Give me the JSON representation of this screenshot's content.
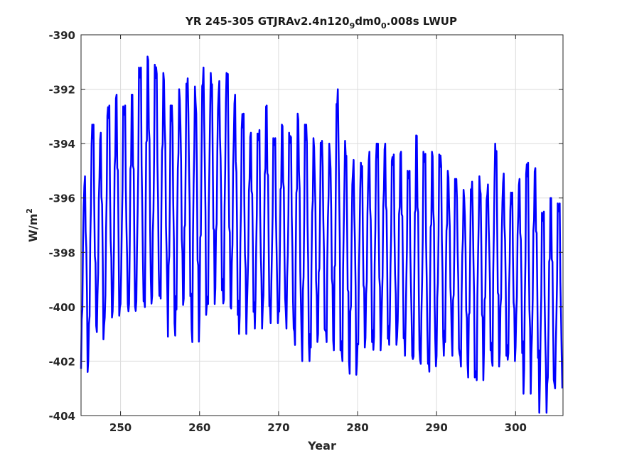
{
  "chart_data": {
    "type": "line",
    "title": "YR 245-305 GTJRAv2.4n120",
    "title_parts": {
      "a": "YR 245-305 GTJRAv2.4n120",
      "sub1": "9",
      "b": "dm0",
      "sub2": "0",
      "c": ".008s LWUP"
    },
    "xlabel": "Year",
    "ylabel": "W/m",
    "ylabel_sup": "2",
    "xlim": [
      245,
      306
    ],
    "ylim": [
      -404,
      -390
    ],
    "xticks": [
      250,
      260,
      270,
      280,
      290,
      300
    ],
    "yticks": [
      -390,
      -392,
      -394,
      -396,
      -398,
      -400,
      -402,
      -404
    ],
    "grid": true,
    "line_color": "#0000ff",
    "series": [
      {
        "description_cycle": "monthly values, seasonal cycle per year (peak approx mid-year, trough approx early year)",
        "yearly_max": [
          -395.2,
          -393.3,
          -393.6,
          -392.6,
          -392.2,
          -392.6,
          -392.2,
          -391.2,
          -390.8,
          -391.1,
          -391.4,
          -392.6,
          -392.0,
          -391.6,
          -391.9,
          -391.2,
          -391.4,
          -391.7,
          -391.4,
          -392.2,
          -392.9,
          -393.6,
          -393.5,
          -392.6,
          -393.8,
          -393.3,
          -393.6,
          -392.9,
          -393.3,
          -393.8,
          -393.9,
          -394.0,
          -392.0,
          -393.9,
          -394.6,
          -394.7,
          -394.3,
          -394.0,
          -394.0,
          -394.4,
          -394.3,
          -395.0,
          -393.7,
          -394.3,
          -394.3,
          -394.4,
          -395.0,
          -395.3,
          -395.7,
          -395.4,
          -395.2,
          -395.5,
          -394.0,
          -395.1,
          -395.8,
          -395.3,
          -394.7,
          -394.9,
          -396.5,
          -396.0,
          -396.2
        ],
        "yearly_min": [
          -402.4,
          -400.7,
          -401.2,
          -400.4,
          -400.6,
          -399.9,
          -400.7,
          -399.8,
          -400.4,
          -399.6,
          -399.7,
          -401.1,
          -400.1,
          -399.7,
          -401.3,
          -400.3,
          -399.9,
          -399.4,
          -400.0,
          -400.3,
          -401.0,
          -400.3,
          -400.8,
          -400.5,
          -400.6,
          -400.6,
          -400.8,
          -401.5,
          -402.0,
          -401.5,
          -401.0,
          -401.3,
          -401.6,
          -402.0,
          -402.5,
          -401.5,
          -401.3,
          -401.6,
          -401.2,
          -401.4,
          -401.5,
          -401.8,
          -402.5,
          -402.1,
          -402.6,
          -401.8,
          -401.3,
          -401.8,
          -402.2,
          -402.6,
          -402.7,
          -401.6,
          -402.2,
          -401.8,
          -402.0,
          -401.7,
          -403.2,
          -402.1,
          -403.9,
          -403.3,
          -403.0
        ]
      }
    ]
  }
}
